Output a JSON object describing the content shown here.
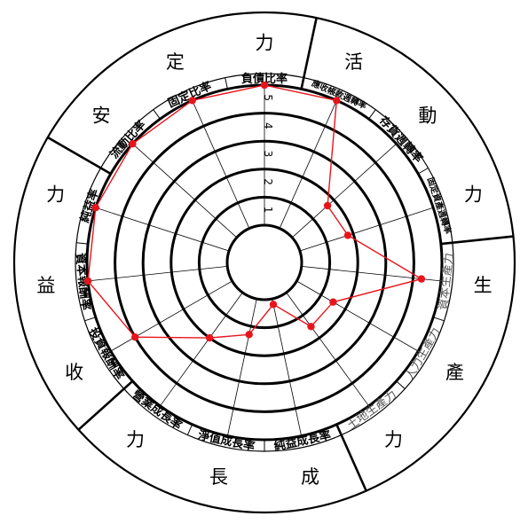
{
  "colors": {
    "line": "#000000",
    "series": "#e8141b",
    "background": "#ffffff",
    "faint_label": "#555555"
  },
  "categories": [
    {
      "name": "安定力",
      "chars": [
        "安",
        "定",
        "力"
      ]
    },
    {
      "name": "活動力",
      "chars": [
        "活",
        "動",
        "力"
      ]
    },
    {
      "name": "生產力",
      "chars": [
        "生",
        "產",
        "力"
      ]
    },
    {
      "name": "成長力",
      "chars": [
        "成",
        "長",
        "力"
      ]
    },
    {
      "name": "收益力",
      "chars": [
        "收",
        "益",
        "力"
      ]
    }
  ],
  "indicators": [
    "流動比率",
    "固定比率",
    "負債比率",
    "應收帳款週轉率",
    "存貨週轉率",
    "固定資產週轉率",
    "資本生產力",
    "人力生產力",
    "土地生產力",
    "純益成長率",
    "淨值成長率",
    "營業成長率",
    "投資報酬率",
    "資本報酬率",
    "純益率"
  ],
  "chart_data": {
    "type": "radar",
    "axis_ticks": [
      "1",
      "2",
      "3",
      "4",
      "5"
    ],
    "rmax": 5,
    "series": [
      {
        "values": [
          5,
          5,
          5,
          5,
          1.7,
          1.8,
          4.3,
          1.5,
          1.5,
          0.2,
          1.3,
          2.0,
          4.0,
          5.0,
          5.0
        ]
      }
    ]
  }
}
